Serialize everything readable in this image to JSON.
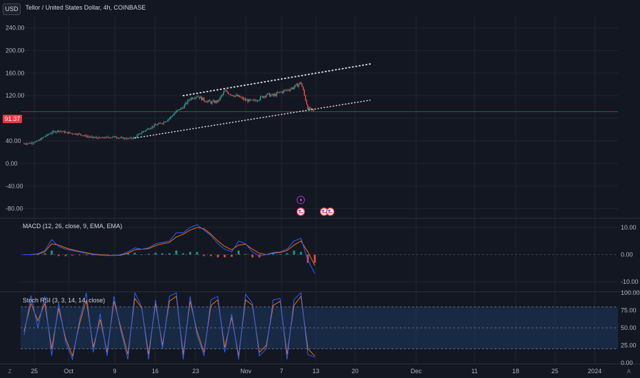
{
  "header": {
    "currency": "USD",
    "symbol_title": "Tellor / United States Dollar, 4h, COINBASE"
  },
  "indicators": {
    "macd_label": "MACD (12, 26, close, 9, EMA, EMA)",
    "stoch_label": "Stoch RSI (3, 3, 14, 14, close)"
  },
  "last_price": "91.37",
  "colors": {
    "background": "#131722",
    "grid": "#1f2430",
    "up": "#26a69a",
    "down": "#ef5350",
    "price_line": "#f23645",
    "macd_line": "#2962ff",
    "signal_line": "#ff6d00",
    "stoch_k": "#2962ff",
    "stoch_d": "#ff6d00",
    "trendline": "#d1d4dc",
    "stoch_band": "#1e3a5f"
  },
  "icons": [
    "lightning-event-icon",
    "us-flag-event-icon"
  ],
  "bottom_controls": {
    "left": "Z",
    "right": "A"
  },
  "chart_data": [
    {
      "type": "candlestick",
      "title": "Tellor / United States Dollar, 4h, COINBASE",
      "ylim": [
        -95,
        260
      ],
      "y_ticks": [
        "240.00",
        "200.00",
        "160.00",
        "120.00",
        "80.00",
        "40.00",
        "0.00",
        "-40.00",
        "-80.00"
      ],
      "y_tick_values": [
        240,
        200,
        160,
        120,
        80,
        40,
        0,
        -40,
        -80
      ],
      "x_ticks": [
        "25",
        "Oct",
        "9",
        "16",
        "23",
        "Nov",
        "7",
        "13",
        "20",
        "Dec",
        "11",
        "18",
        "25",
        "2024"
      ],
      "last_price": 91.37,
      "close_trajectory": [
        [
          0,
          35
        ],
        [
          1,
          36
        ],
        [
          2,
          40
        ],
        [
          3,
          48
        ],
        [
          4,
          55
        ],
        [
          5,
          58
        ],
        [
          6,
          55
        ],
        [
          7,
          53
        ],
        [
          8,
          52
        ],
        [
          9,
          48
        ],
        [
          10,
          46
        ],
        [
          11,
          45
        ],
        [
          12,
          46
        ],
        [
          13,
          47
        ],
        [
          14,
          45
        ],
        [
          15,
          44
        ],
        [
          16,
          46
        ],
        [
          17,
          55
        ],
        [
          18,
          62
        ],
        [
          19,
          68
        ],
        [
          20,
          72
        ],
        [
          21,
          80
        ],
        [
          22,
          92
        ],
        [
          23,
          100
        ],
        [
          24,
          115
        ],
        [
          25,
          120
        ],
        [
          26,
          112
        ],
        [
          27,
          108
        ],
        [
          28,
          110
        ],
        [
          29,
          128
        ],
        [
          30,
          122
        ],
        [
          31,
          118
        ],
        [
          32,
          112
        ],
        [
          33,
          110
        ],
        [
          34,
          115
        ],
        [
          35,
          122
        ],
        [
          36,
          120
        ],
        [
          37,
          126
        ],
        [
          38,
          130
        ],
        [
          39,
          135
        ],
        [
          40,
          143
        ],
        [
          41,
          98
        ],
        [
          42,
          91.37
        ]
      ],
      "trendlines": {
        "upper": [
          [
            23,
            120
          ],
          [
            50,
            176
          ]
        ],
        "lower": [
          [
            16,
            45
          ],
          [
            50,
            112
          ]
        ]
      }
    },
    {
      "type": "macd",
      "label": "MACD (12, 26, close, 9, EMA, EMA)",
      "ylim": [
        -13,
        13
      ],
      "y_ticks": [
        "10.00",
        "0.00",
        "-10.00"
      ],
      "y_tick_values": [
        10,
        0,
        -10
      ],
      "macd": [
        0,
        0,
        0.3,
        1.5,
        5.5,
        3,
        2,
        1.5,
        1,
        0.5,
        0,
        -0.2,
        -0.3,
        -0.3,
        0,
        1,
        2.5,
        2,
        2.5,
        4,
        4.5,
        5,
        8,
        8,
        10,
        11,
        9,
        7,
        4,
        2,
        1,
        5,
        4,
        1,
        -0.5,
        0,
        0.8,
        1,
        2,
        5,
        6,
        -2,
        -7
      ],
      "signal": [
        0,
        0,
        0.2,
        1,
        4,
        3.5,
        2.5,
        1.8,
        1.2,
        0.7,
        0.2,
        0,
        -0.2,
        -0.3,
        -0.2,
        0.5,
        1.8,
        2,
        2.2,
        3.3,
        4,
        4.5,
        6.5,
        7.5,
        9,
        10,
        9.5,
        7.5,
        5,
        3,
        1.8,
        3.5,
        3.8,
        2,
        0.5,
        0,
        0.5,
        0.8,
        1.5,
        3.5,
        5,
        1,
        -4
      ]
    },
    {
      "type": "stoch_rsi",
      "label": "Stoch RSI (3, 3, 14, 14, close)",
      "ylim": [
        0,
        100
      ],
      "y_ticks": [
        "100.00",
        "75.00",
        "50.00",
        "25.00",
        "0.00"
      ],
      "y_tick_values": [
        100,
        75,
        50,
        25,
        0
      ],
      "bands": [
        20,
        80
      ],
      "k": [
        40,
        96,
        50,
        95,
        10,
        85,
        30,
        5,
        60,
        100,
        15,
        70,
        10,
        95,
        45,
        5,
        100,
        80,
        5,
        90,
        20,
        95,
        100,
        5,
        95,
        40,
        10,
        90,
        95,
        15,
        70,
        5,
        98,
        85,
        10,
        20,
        90,
        92,
        5,
        90,
        100,
        12,
        8
      ],
      "d": [
        45,
        85,
        60,
        85,
        20,
        78,
        35,
        10,
        55,
        90,
        22,
        62,
        15,
        88,
        50,
        12,
        92,
        78,
        12,
        85,
        25,
        88,
        95,
        12,
        88,
        45,
        15,
        82,
        90,
        22,
        65,
        10,
        90,
        82,
        15,
        25,
        82,
        88,
        12,
        82,
        95,
        20,
        10
      ]
    }
  ]
}
